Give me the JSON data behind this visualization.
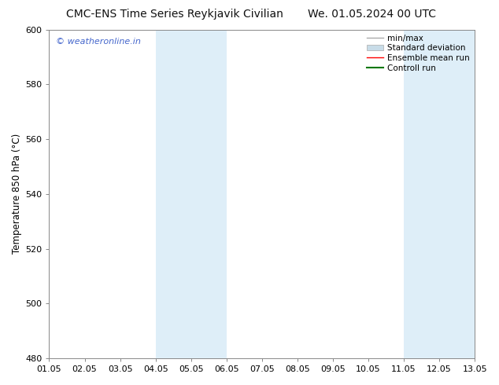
{
  "title_left": "CMC-ENS Time Series Reykjavik Civilian",
  "title_right": "We. 01.05.2024 00 UTC",
  "ylabel": "Temperature 850 hPa (°C)",
  "ylim": [
    480,
    600
  ],
  "yticks": [
    480,
    500,
    520,
    540,
    560,
    580,
    600
  ],
  "xlim": [
    0,
    12
  ],
  "xtick_labels": [
    "01.05",
    "02.05",
    "03.05",
    "04.05",
    "05.05",
    "06.05",
    "07.05",
    "08.05",
    "09.05",
    "10.05",
    "11.05",
    "12.05",
    "13.05"
  ],
  "xtick_positions": [
    0,
    1,
    2,
    3,
    4,
    5,
    6,
    7,
    8,
    9,
    10,
    11,
    12
  ],
  "shaded_bands": [
    {
      "xmin": 3,
      "xmax": 4,
      "color": "#deeef8"
    },
    {
      "xmin": 4,
      "xmax": 5,
      "color": "#deeef8"
    },
    {
      "xmin": 10,
      "xmax": 11,
      "color": "#deeef8"
    },
    {
      "xmin": 11,
      "xmax": 12,
      "color": "#deeef8"
    }
  ],
  "watermark_text": "© weatheronline.in",
  "watermark_color": "#4466cc",
  "background_color": "#ffffff",
  "plot_bg_color": "#ffffff",
  "legend_entries": [
    {
      "label": "min/max",
      "color": "#aaaaaa",
      "lw": 1.0,
      "type": "line"
    },
    {
      "label": "Standard deviation",
      "color": "#c8dce8",
      "lw": 5,
      "type": "band"
    },
    {
      "label": "Ensemble mean run",
      "color": "#ff0000",
      "lw": 1.0,
      "type": "line"
    },
    {
      "label": "Controll run",
      "color": "#007700",
      "lw": 1.5,
      "type": "line"
    }
  ],
  "spine_color": "#888888",
  "title_fontsize": 10,
  "axis_label_fontsize": 8.5,
  "tick_fontsize": 8,
  "legend_fontsize": 7.5
}
